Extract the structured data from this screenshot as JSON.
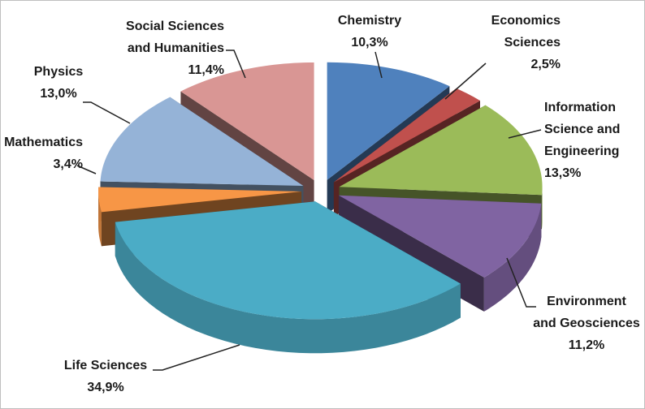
{
  "chart_data": {
    "type": "pie3d",
    "categories": [
      "Chemistry",
      "Economics Sciences",
      "Information Science and Engineering",
      "Environment and Geosciences",
      "Life Sciences",
      "Mathematics",
      "Physics",
      "Social Sciences and Humanities"
    ],
    "values": [
      10.3,
      2.5,
      13.3,
      11.2,
      34.9,
      3.4,
      13.0,
      11.4
    ],
    "value_labels": [
      "10,3%",
      "2,5%",
      "13,3%",
      "11,2%",
      "34,9%",
      "3,4%",
      "13,0%",
      "11,4%"
    ],
    "colors": [
      "#4f81bd",
      "#c0504d",
      "#9bbb59",
      "#8064a2",
      "#4bacc6",
      "#f79646",
      "#95b3d7",
      "#d99694"
    ]
  }
}
